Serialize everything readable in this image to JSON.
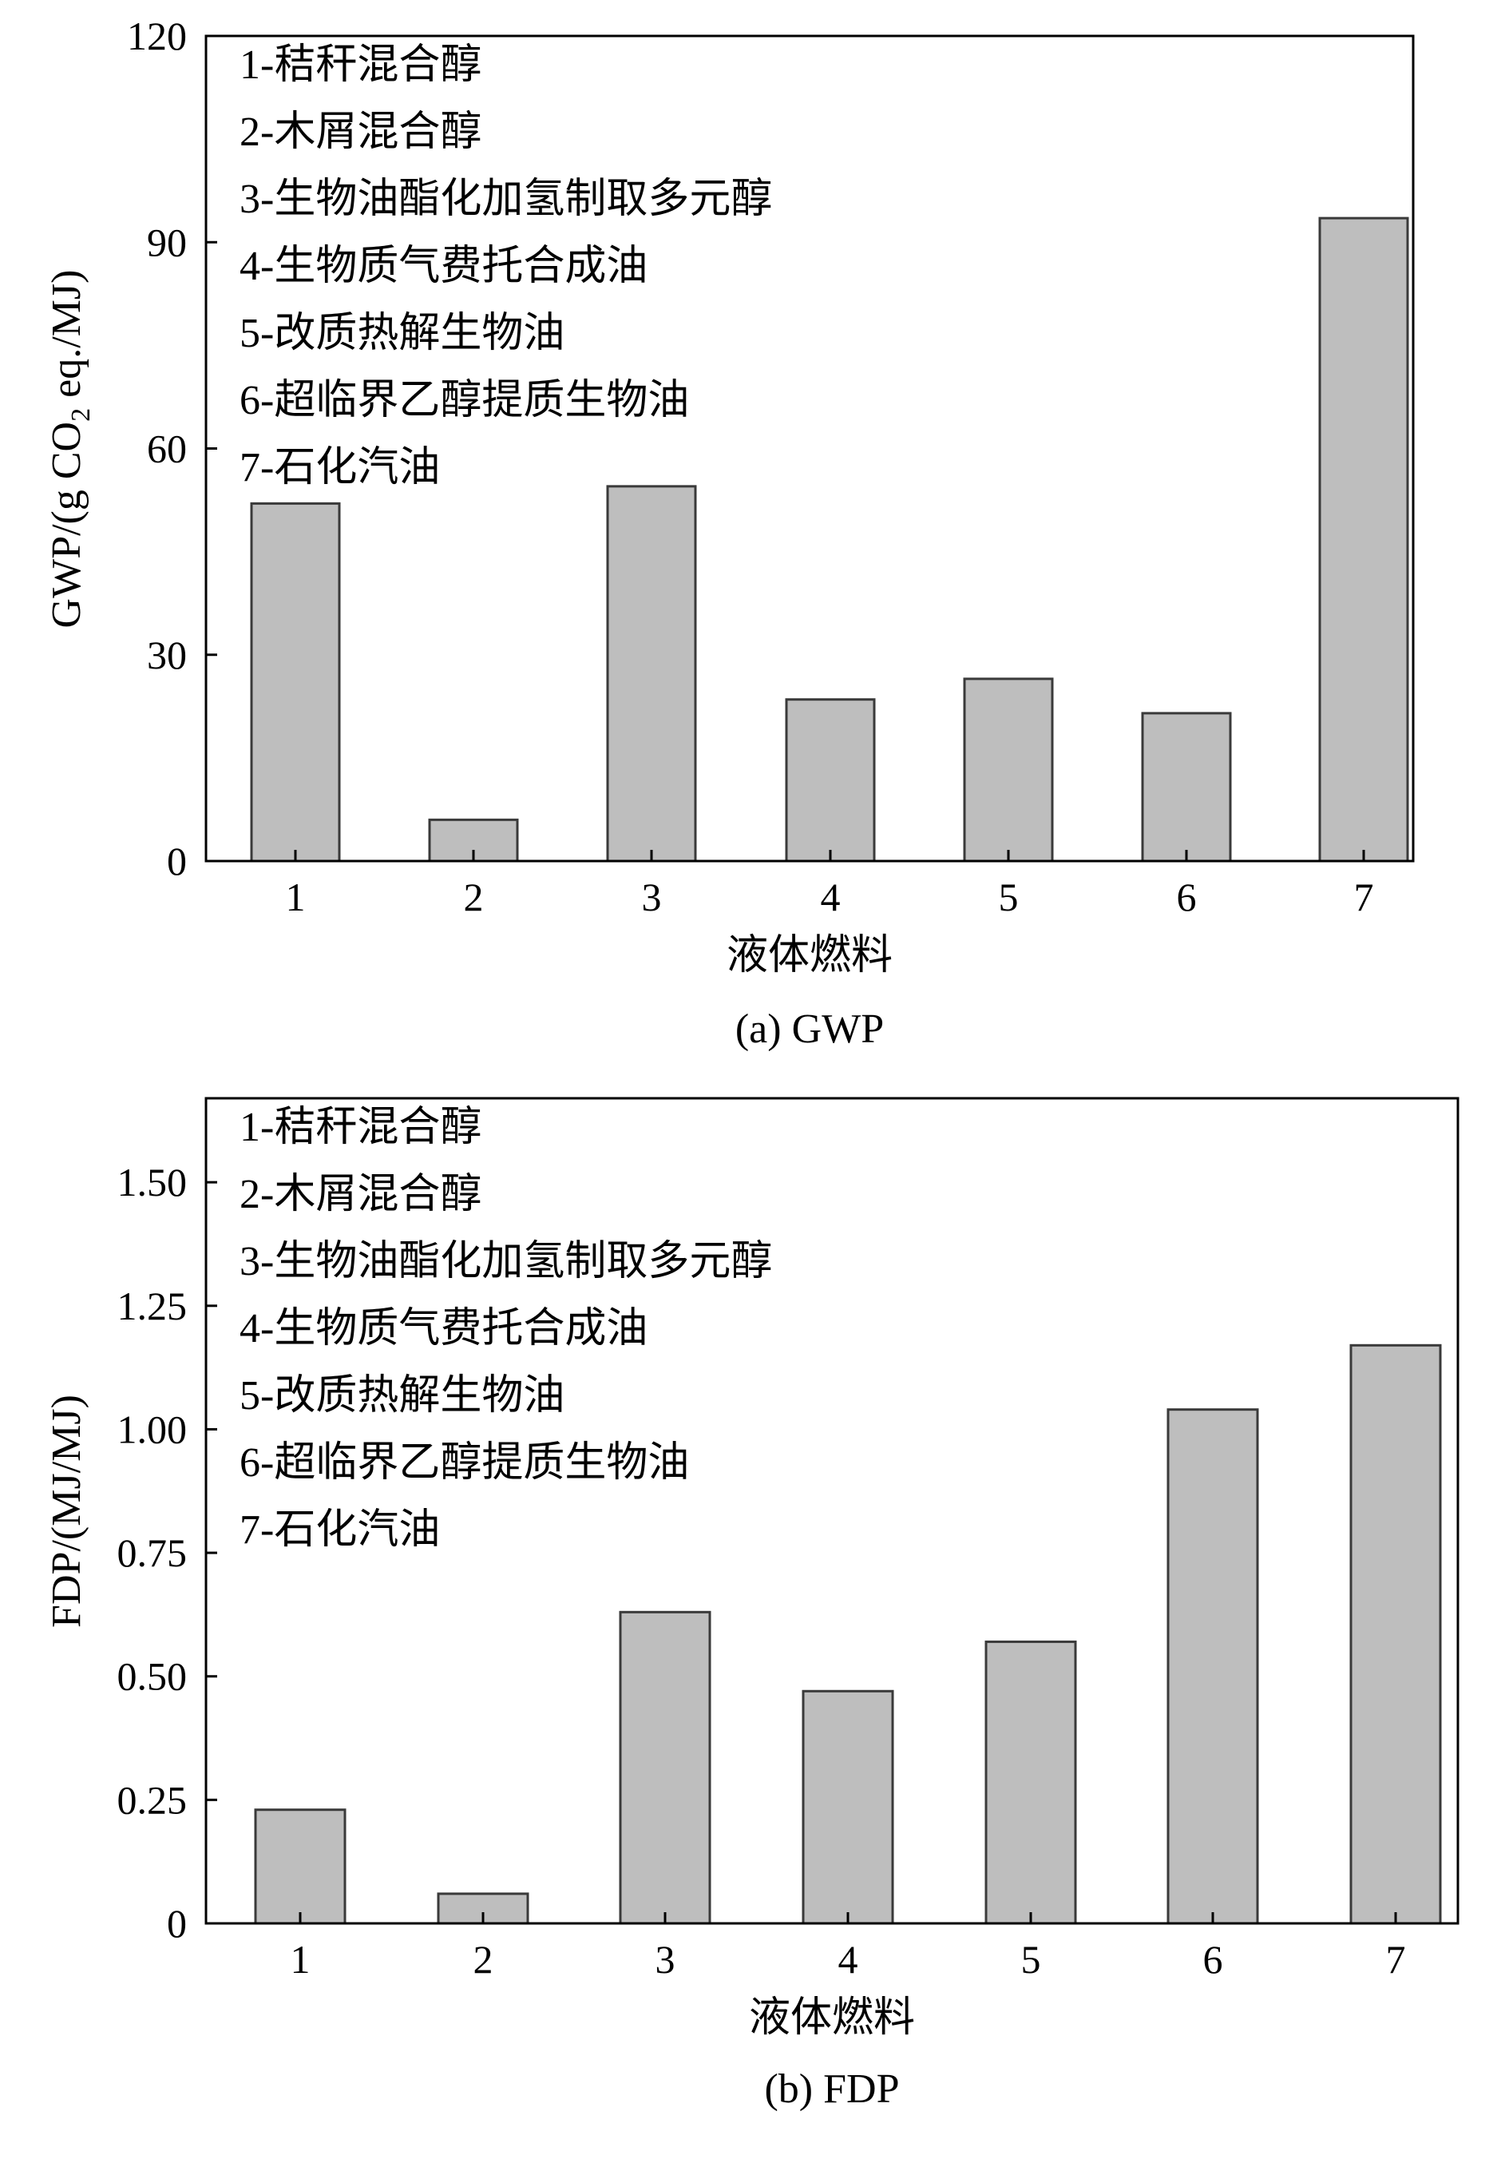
{
  "chart_data": [
    {
      "type": "bar",
      "title": "",
      "caption": "(a) GWP",
      "xlabel": "液体燃料",
      "ylabel_main": "GWP/(g CO",
      "ylabel_sub": "2",
      "ylabel_tail": " eq./MJ)",
      "ylim": [
        0,
        120
      ],
      "yticks": [
        0,
        30,
        60,
        90,
        120
      ],
      "ytick_labels": [
        "0",
        "30",
        "60",
        "90",
        "120"
      ],
      "categories": [
        "1",
        "2",
        "3",
        "4",
        "5",
        "6",
        "7"
      ],
      "values": [
        52,
        6,
        54.5,
        23.5,
        26.5,
        21.5,
        93.5
      ],
      "legend": [
        "1-秸秆混合醇",
        "2-木屑混合醇",
        "3-生物油酯化加氢制取多元醇",
        "4-生物质气费托合成油",
        "5-改质热解生物油",
        "6-超临界乙醇提质生物油",
        "7-石化汽油"
      ]
    },
    {
      "type": "bar",
      "title": "",
      "caption": "(b) FDP",
      "xlabel": "液体燃料",
      "ylabel": "FDP/(MJ/MJ)",
      "ylim": [
        0,
        1.67
      ],
      "yticks": [
        0,
        0.25,
        0.5,
        0.75,
        1.0,
        1.25,
        1.5
      ],
      "ytick_labels": [
        "0",
        "0.25",
        "0.50",
        "0.75",
        "1.00",
        "1.25",
        "1.50"
      ],
      "categories": [
        "1",
        "2",
        "3",
        "4",
        "5",
        "6",
        "7"
      ],
      "values": [
        0.23,
        0.06,
        0.63,
        0.47,
        0.57,
        1.04,
        1.17
      ],
      "legend": [
        "1-秸秆混合醇",
        "2-木屑混合醇",
        "3-生物油酯化加氢制取多元醇",
        "4-生物质气费托合成油",
        "5-改质热解生物油",
        "6-超临界乙醇提质生物油",
        "7-石化汽油"
      ]
    }
  ]
}
